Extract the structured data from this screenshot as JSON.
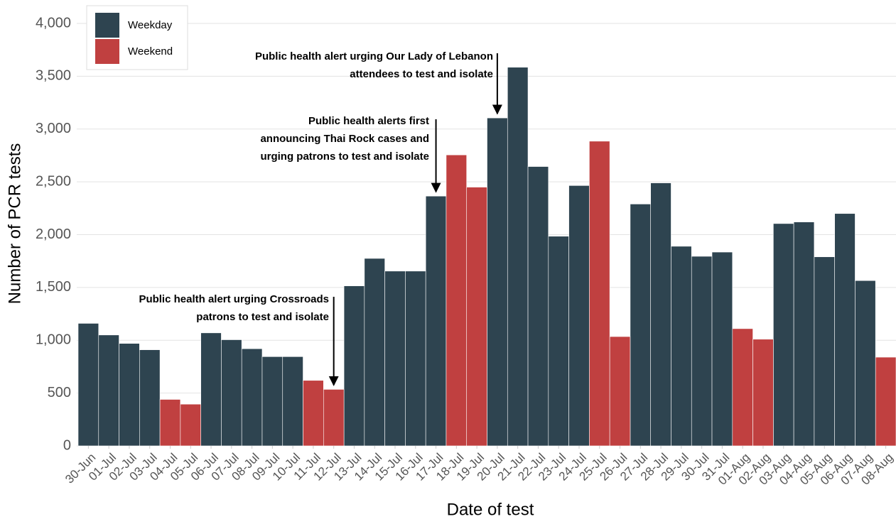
{
  "chart_data": {
    "type": "bar",
    "x_label": "Date of test",
    "y_label": "Number of PCR tests",
    "categories": [
      "30-Jun",
      "01-Jul",
      "02-Jul",
      "03-Jul",
      "04-Jul",
      "05-Jul",
      "06-Jul",
      "07-Jul",
      "08-Jul",
      "09-Jul",
      "10-Jul",
      "11-Jul",
      "12-Jul",
      "13-Jul",
      "14-Jul",
      "15-Jul",
      "16-Jul",
      "17-Jul",
      "18-Jul",
      "19-Jul",
      "20-Jul",
      "21-Jul",
      "22-Jul",
      "23-Jul",
      "24-Jul",
      "25-Jul",
      "26-Jul",
      "27-Jul",
      "28-Jul",
      "29-Jul",
      "30-Jul",
      "31-Jul",
      "01-Aug",
      "02-Aug",
      "03-Aug",
      "04-Aug",
      "05-Aug",
      "06-Aug",
      "07-Aug",
      "08-Aug"
    ],
    "series": [
      {
        "name": "Weekday",
        "color": "#2e4450",
        "values": [
          1160,
          1050,
          970,
          910,
          null,
          null,
          1070,
          1005,
          920,
          845,
          845,
          null,
          null,
          1515,
          1775,
          1655,
          1655,
          2365,
          null,
          null,
          3105,
          3585,
          2645,
          1985,
          2465,
          null,
          null,
          2290,
          2490,
          1890,
          1795,
          1835,
          null,
          null,
          2105,
          2120,
          1790,
          2200,
          1565,
          null
        ]
      },
      {
        "name": "Weekend",
        "color": "#c04040",
        "values": [
          null,
          null,
          null,
          null,
          440,
          395,
          null,
          null,
          null,
          null,
          null,
          620,
          535,
          null,
          null,
          null,
          null,
          null,
          2755,
          2450,
          null,
          null,
          null,
          null,
          null,
          2885,
          1035,
          null,
          null,
          null,
          null,
          null,
          1110,
          1010,
          null,
          null,
          null,
          null,
          null,
          840
        ]
      }
    ],
    "ylim": [
      0,
      4000
    ],
    "yticks": [
      0,
      500,
      {
        "value": 1000,
        "label": "1,000"
      },
      {
        "value": 1500,
        "label": "1,500"
      },
      {
        "value": 2000,
        "label": "2,000"
      },
      {
        "value": 2500,
        "label": "2,500"
      },
      {
        "value": 3000,
        "label": "3,000"
      },
      {
        "value": 3500,
        "label": "3,500"
      },
      {
        "value": 4000,
        "label": "4,000"
      }
    ],
    "grid": true,
    "legend": "top-left",
    "annotations": [
      {
        "x": "12-Jul",
        "lines": [
          "Public health alert urging Crossroads",
          "patrons to test and isolate"
        ]
      },
      {
        "x": "17-Jul",
        "lines": [
          "Public health alerts first",
          "announcing Thai Rock cases and",
          "urging patrons to test and isolate"
        ]
      },
      {
        "x": "20-Jul",
        "lines": [
          "Public health alert urging Our Lady of Lebanon",
          "attendees to test and isolate"
        ]
      }
    ]
  }
}
